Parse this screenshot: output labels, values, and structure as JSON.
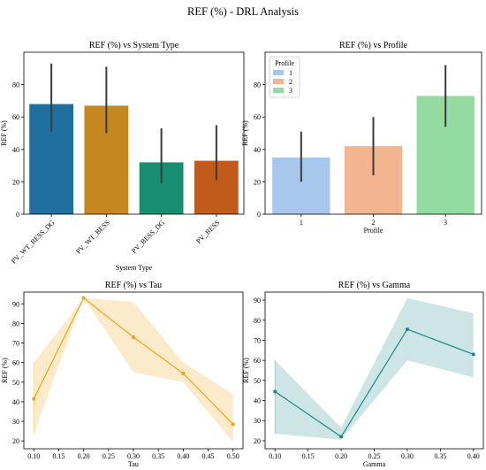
{
  "figure": {
    "suptitle": "REF (%) - DRL Analysis"
  },
  "chart_data": [
    {
      "type": "bar",
      "title": "REF (%) vs System Type",
      "xlabel": "System Type",
      "ylabel": "REF (%)",
      "ylim": [
        0,
        100
      ],
      "yticks": [
        0,
        20,
        40,
        60,
        80
      ],
      "categories": [
        "PV_WT_BESS_DG",
        "PV_WT_BESS",
        "PV_BESS_DG",
        "PV_BESS"
      ],
      "values": [
        68,
        67,
        32,
        33
      ],
      "error_low": [
        51,
        50,
        19,
        21
      ],
      "error_high": [
        93,
        91,
        53,
        55
      ],
      "colors": [
        "#1f6f9f",
        "#c5871f",
        "#168e6f",
        "#c05b1b"
      ],
      "legend": null,
      "grid": false
    },
    {
      "type": "bar",
      "title": "REF (%) vs Profile",
      "xlabel": "Profile",
      "ylabel": "REF (%)",
      "ylim": [
        0,
        100
      ],
      "yticks": [
        0,
        20,
        40,
        60,
        80
      ],
      "categories": [
        "1",
        "2",
        "3"
      ],
      "values": [
        35,
        42,
        73
      ],
      "error_low": [
        20,
        24,
        54
      ],
      "error_high": [
        51,
        60,
        92
      ],
      "colors": [
        "#a9c7ec",
        "#f2b590",
        "#93dba0"
      ],
      "legend": {
        "title": "Profile",
        "placement": "top-left",
        "entries": [
          "1",
          "2",
          "3"
        ]
      },
      "grid": false
    },
    {
      "type": "line",
      "title": "REF (%) vs Tau",
      "xlabel": "Tau",
      "ylabel": "REF (%)",
      "xlim": [
        0.08,
        0.52
      ],
      "ylim": [
        16,
        96
      ],
      "xticks": [
        0.1,
        0.15,
        0.2,
        0.25,
        0.3,
        0.35,
        0.4,
        0.45,
        0.5
      ],
      "yticks": [
        20,
        30,
        40,
        50,
        60,
        70,
        80,
        90
      ],
      "x": [
        0.1,
        0.2,
        0.3,
        0.4,
        0.5
      ],
      "y": [
        41.5,
        93,
        73,
        54.5,
        28.5
      ],
      "ci_low": [
        23.5,
        93,
        55,
        50,
        19.5
      ],
      "ci_high": [
        60,
        93,
        91,
        60,
        44
      ],
      "color": "#f2a20f",
      "legend": null,
      "grid": false
    },
    {
      "type": "line",
      "title": "REF (%) vs Gamma",
      "xlabel": "Gamma",
      "ylabel": "REF (%)",
      "xlim": [
        0.085,
        0.415
      ],
      "ylim": [
        16,
        94
      ],
      "xticks": [
        0.1,
        0.15,
        0.2,
        0.25,
        0.3,
        0.35,
        0.4
      ],
      "yticks": [
        20,
        30,
        40,
        50,
        60,
        70,
        80,
        90
      ],
      "x": [
        0.1,
        0.2,
        0.3,
        0.4
      ],
      "y": [
        44.5,
        22,
        75.5,
        63
      ],
      "ci_low": [
        23.5,
        20.5,
        60,
        51.5
      ],
      "ci_high": [
        60,
        26.5,
        91,
        83.5
      ],
      "color": "#1a8a87",
      "legend": null,
      "grid": false
    }
  ]
}
